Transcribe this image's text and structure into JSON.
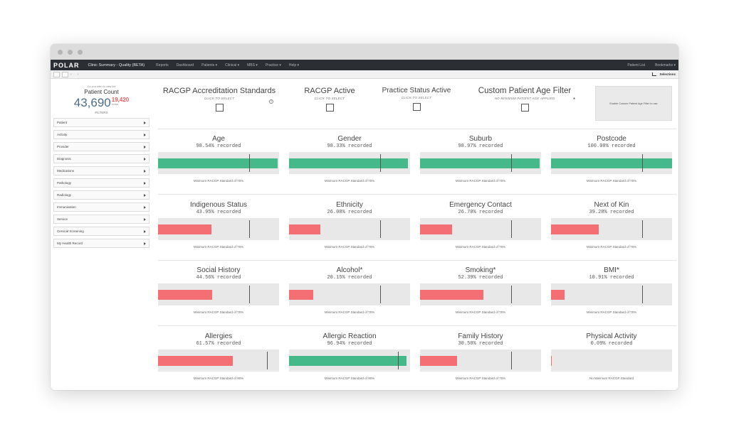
{
  "app": {
    "logo_text": "POLAR",
    "title": "Clinic Summary - Quality (BETA)",
    "nav": [
      "Reports",
      "Dashboard",
      "Patients ▾",
      "Clinical ▾",
      "MBS ▾",
      "Practice ▾",
      "Help ▾"
    ],
    "nav_right": [
      "Patient List",
      "Bookmarks ▾"
    ]
  },
  "toolbar": {
    "selections_label": "Selections",
    "back": "‹",
    "forward": "›"
  },
  "sidebar": {
    "hint": "Do you wish to view list",
    "patient_count_title": "Patient Count",
    "patient_count": "43,690",
    "secondary_count": "19,420",
    "secondary_sub": "Active",
    "filters_label": "FILTERS",
    "filters": [
      "Patient",
      "Activity",
      "Provider",
      "Diagnosis",
      "Medications",
      "Pathology",
      "Radiology",
      "Immunisation",
      "Service",
      "Cervical Screening",
      "My Health Record"
    ]
  },
  "top_filters": [
    {
      "title": "RACGP Accreditation Standards",
      "sub": "CLICK TO SELECT"
    },
    {
      "title": "RACGP Active",
      "sub": "CLICK TO SELECT"
    },
    {
      "title": "Practice Status Active",
      "sub": "CLICK TO SELECT"
    },
    {
      "title": "Custom Patient Age Filter",
      "sub": "NO MINIMUM PATIENT AGE APPLIED"
    }
  ],
  "info_icon": "i",
  "asterisk": "*",
  "enable_box": "Enable Custom Patient Age Filter to use",
  "colors": {
    "green": "#46b98a",
    "red": "#f36f74",
    "track": "#e8e8e8"
  },
  "metrics": [
    {
      "title": "Age",
      "pct": "98.54% recorded",
      "value": 98.54,
      "status": "green",
      "standard": 75,
      "foot": "Minimum RACGP Standard of 75%"
    },
    {
      "title": "Gender",
      "pct": "98.33% recorded",
      "value": 98.33,
      "status": "green",
      "standard": 75,
      "foot": "Minimum RACGP Standard of 75%"
    },
    {
      "title": "Suburb",
      "pct": "98.97% recorded",
      "value": 98.97,
      "status": "green",
      "standard": 75,
      "foot": "Minimum RACGP Standard of 75%"
    },
    {
      "title": "Postcode",
      "pct": "100.00% recorded",
      "value": 100.0,
      "status": "green",
      "standard": 75,
      "foot": "Minimum RACGP Standard of 75%"
    },
    {
      "title": "Indigenous Status",
      "pct": "43.95% recorded",
      "value": 43.95,
      "status": "red",
      "standard": 75,
      "foot": "Minimum RACGP Standard of 75%"
    },
    {
      "title": "Ethnicity",
      "pct": "26.08% recorded",
      "value": 26.08,
      "status": "red",
      "standard": 75,
      "foot": "Minimum RACGP Standard of 75%"
    },
    {
      "title": "Emergency Contact",
      "pct": "26.70% recorded",
      "value": 26.7,
      "status": "red",
      "standard": 75,
      "foot": "Minimum RACGP Standard of 75%"
    },
    {
      "title": "Next of Kin",
      "pct": "39.28% recorded",
      "value": 39.28,
      "status": "red",
      "standard": 75,
      "foot": "Minimum RACGP Standard of 75%"
    },
    {
      "title": "Social History",
      "pct": "44.56% recorded",
      "value": 44.56,
      "status": "red",
      "standard": 75,
      "foot": "Minimum RACGP Standard of 75%"
    },
    {
      "title": "Alcohol*",
      "pct": "20.15% recorded",
      "value": 20.15,
      "status": "red",
      "standard": 75,
      "foot": "Minimum RACGP Standard of 75%"
    },
    {
      "title": "Smoking*",
      "pct": "52.39% recorded",
      "value": 52.39,
      "status": "red",
      "standard": 75,
      "foot": "Minimum RACGP Standard of 75%"
    },
    {
      "title": "BMI*",
      "pct": "10.91% recorded",
      "value": 10.91,
      "status": "red",
      "standard": 75,
      "foot": "Minimum RACGP Standard of 75%"
    },
    {
      "title": "Allergies",
      "pct": "61.57% recorded",
      "value": 61.57,
      "status": "red",
      "standard": 90,
      "foot": "Minimum RACGP Standard of 90%"
    },
    {
      "title": "Allergic Reaction",
      "pct": "96.94% recorded",
      "value": 96.94,
      "status": "green",
      "standard": 90,
      "foot": "Minimum RACGP Standard of 90%"
    },
    {
      "title": "Family History",
      "pct": "30.50% recorded",
      "value": 30.5,
      "status": "red",
      "standard": 75,
      "foot": "Minimum RACGP Standard of 75%"
    },
    {
      "title": "Physical Activity",
      "pct": "0.09% recorded",
      "value": 0.09,
      "status": "red",
      "standard": 0,
      "foot": "No Minimum RACGP Standard"
    }
  ]
}
